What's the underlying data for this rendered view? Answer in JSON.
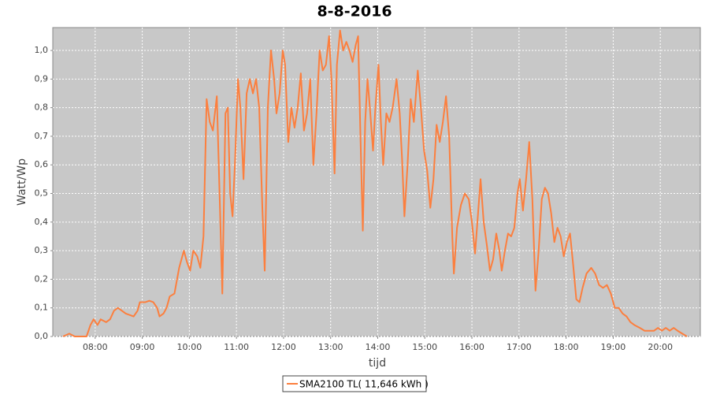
{
  "chart_data": {
    "type": "line",
    "title": "8-8-2016",
    "x_label": "tijd",
    "y_label": "Watt/Wp",
    "grid": true,
    "legend_position": "bottom",
    "xlim": [
      "07:06",
      "20:51"
    ],
    "xticks": [
      "08:00",
      "09:00",
      "10:00",
      "11:00",
      "12:00",
      "13:00",
      "14:00",
      "15:00",
      "16:00",
      "17:00",
      "18:00",
      "19:00",
      "20:00"
    ],
    "ylim": [
      0,
      1.08
    ],
    "yticks": [
      {
        "value": 0,
        "label": "0,0"
      },
      {
        "value": 0.1,
        "label": "0,1"
      },
      {
        "value": 0.2,
        "label": "0,2"
      },
      {
        "value": 0.3,
        "label": "0,3"
      },
      {
        "value": 0.4,
        "label": "0,4"
      },
      {
        "value": 0.5,
        "label": "0,5"
      },
      {
        "value": 0.6,
        "label": "0,6"
      },
      {
        "value": 0.7,
        "label": "0,7"
      },
      {
        "value": 0.8,
        "label": "0,8"
      },
      {
        "value": 0.9,
        "label": "0,9"
      },
      {
        "value": 1.0,
        "label": "1,0"
      }
    ],
    "x": [
      "07:19",
      "07:27",
      "07:34",
      "07:49",
      "07:54",
      "07:58",
      "08:03",
      "08:07",
      "08:14",
      "08:19",
      "08:24",
      "08:29",
      "08:34",
      "08:39",
      "08:49",
      "08:54",
      "08:57",
      "09:04",
      "09:09",
      "09:14",
      "09:19",
      "09:22",
      "09:27",
      "09:31",
      "09:35",
      "09:41",
      "09:47",
      "09:53",
      "09:57",
      "10:01",
      "10:05",
      "10:10",
      "10:14",
      "10:18",
      "10:22",
      "10:26",
      "10:30",
      "10:35",
      "10:39",
      "10:42",
      "10:46",
      "10:49",
      "10:52",
      "10:55",
      "10:58",
      "11:02",
      "11:05",
      "11:09",
      "11:13",
      "11:17",
      "11:21",
      "11:25",
      "11:29",
      "11:33",
      "11:36",
      "11:40",
      "11:44",
      "11:48",
      "11:51",
      "11:55",
      "11:59",
      "12:02",
      "12:06",
      "12:10",
      "12:14",
      "12:18",
      "12:22",
      "12:26",
      "12:30",
      "12:34",
      "12:38",
      "12:42",
      "12:46",
      "12:50",
      "12:54",
      "12:58",
      "13:01",
      "13:05",
      "13:08",
      "13:12",
      "13:16",
      "13:20",
      "13:24",
      "13:28",
      "13:32",
      "13:35",
      "13:38",
      "13:41",
      "13:44",
      "13:47",
      "13:50",
      "13:54",
      "13:57",
      "14:01",
      "14:04",
      "14:07",
      "14:11",
      "14:15",
      "14:19",
      "14:24",
      "14:28",
      "14:31",
      "14:34",
      "14:38",
      "14:42",
      "14:46",
      "14:51",
      "14:55",
      "14:59",
      "15:03",
      "15:07",
      "15:11",
      "15:15",
      "15:19",
      "15:23",
      "15:27",
      "15:31",
      "15:35",
      "15:37",
      "15:41",
      "15:46",
      "15:51",
      "15:56",
      "16:00",
      "16:04",
      "16:07",
      "16:11",
      "16:15",
      "16:19",
      "16:23",
      "16:27",
      "16:31",
      "16:35",
      "16:38",
      "16:42",
      "16:46",
      "16:50",
      "16:54",
      "16:58",
      "17:01",
      "17:05",
      "17:09",
      "17:13",
      "17:17",
      "17:21",
      "17:25",
      "17:29",
      "17:33",
      "17:37",
      "17:41",
      "17:45",
      "17:49",
      "17:53",
      "17:57",
      "18:01",
      "18:05",
      "18:09",
      "18:13",
      "18:17",
      "18:21",
      "18:26",
      "18:32",
      "18:37",
      "18:42",
      "18:47",
      "18:52",
      "18:57",
      "19:02",
      "19:07",
      "19:12",
      "19:17",
      "19:22",
      "19:27",
      "19:34",
      "19:40",
      "19:47",
      "19:52",
      "19:57",
      "20:02",
      "20:07",
      "20:12",
      "20:17",
      "20:22",
      "20:28",
      "20:34"
    ],
    "series": [
      {
        "name": "SMA2100 TL( 11,646 kWh )",
        "color": "#fc7f3e",
        "values": [
          0.0,
          0.01,
          0.0,
          0.0,
          0.04,
          0.06,
          0.04,
          0.06,
          0.05,
          0.06,
          0.09,
          0.1,
          0.09,
          0.08,
          0.07,
          0.09,
          0.12,
          0.12,
          0.125,
          0.12,
          0.1,
          0.07,
          0.08,
          0.1,
          0.14,
          0.15,
          0.24,
          0.3,
          0.26,
          0.23,
          0.3,
          0.28,
          0.24,
          0.35,
          0.83,
          0.75,
          0.72,
          0.84,
          0.45,
          0.15,
          0.78,
          0.8,
          0.5,
          0.42,
          0.6,
          0.9,
          0.8,
          0.55,
          0.85,
          0.9,
          0.85,
          0.9,
          0.8,
          0.45,
          0.23,
          0.8,
          1.0,
          0.9,
          0.78,
          0.85,
          1.0,
          0.95,
          0.68,
          0.8,
          0.73,
          0.8,
          0.92,
          0.72,
          0.78,
          0.9,
          0.6,
          0.78,
          1.0,
          0.93,
          0.95,
          1.05,
          0.9,
          0.57,
          0.95,
          1.07,
          1.0,
          1.03,
          1.0,
          0.96,
          1.02,
          1.05,
          0.7,
          0.37,
          0.75,
          0.9,
          0.8,
          0.65,
          0.8,
          0.95,
          0.75,
          0.6,
          0.78,
          0.75,
          0.8,
          0.9,
          0.78,
          0.62,
          0.42,
          0.6,
          0.83,
          0.75,
          0.93,
          0.8,
          0.65,
          0.58,
          0.45,
          0.55,
          0.74,
          0.68,
          0.75,
          0.84,
          0.7,
          0.35,
          0.22,
          0.38,
          0.46,
          0.5,
          0.48,
          0.4,
          0.29,
          0.4,
          0.55,
          0.4,
          0.32,
          0.23,
          0.27,
          0.36,
          0.3,
          0.23,
          0.3,
          0.36,
          0.35,
          0.38,
          0.5,
          0.55,
          0.44,
          0.55,
          0.68,
          0.48,
          0.16,
          0.3,
          0.48,
          0.52,
          0.5,
          0.43,
          0.33,
          0.38,
          0.35,
          0.28,
          0.33,
          0.36,
          0.25,
          0.13,
          0.12,
          0.17,
          0.22,
          0.24,
          0.22,
          0.18,
          0.17,
          0.18,
          0.15,
          0.1,
          0.1,
          0.08,
          0.07,
          0.05,
          0.04,
          0.03,
          0.02,
          0.02,
          0.02,
          0.03,
          0.02,
          0.03,
          0.02,
          0.03,
          0.02,
          0.01,
          0.0
        ]
      }
    ]
  }
}
